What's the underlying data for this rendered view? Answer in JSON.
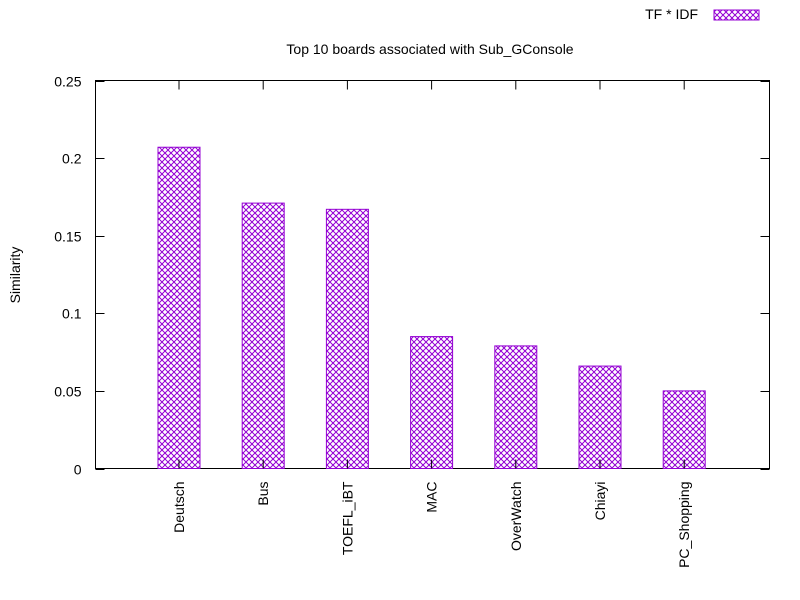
{
  "chart_data": {
    "type": "bar",
    "title": "Top 10 boards associated with Sub_GConsole",
    "xlabel": "",
    "ylabel": "Similarity",
    "categories": [
      "Deutsch",
      "Bus",
      "TOEFL_iBT",
      "MAC",
      "OverWatch",
      "Chiayi",
      "PC_Shopping"
    ],
    "series": [
      {
        "name": "TF * IDF",
        "values": [
          0.207,
          0.171,
          0.167,
          0.085,
          0.079,
          0.066,
          0.05
        ],
        "color": "#9400d3"
      }
    ],
    "ylim": [
      0,
      0.25
    ],
    "yticks": [
      0,
      0.05,
      0.1,
      0.15,
      0.2,
      0.25
    ],
    "ytick_labels": [
      "0",
      "0.05",
      "0.1",
      "0.15",
      "0.2",
      "0.25"
    ],
    "grid": false,
    "legend_position": "top-right",
    "fill_pattern": "crosshatch"
  }
}
